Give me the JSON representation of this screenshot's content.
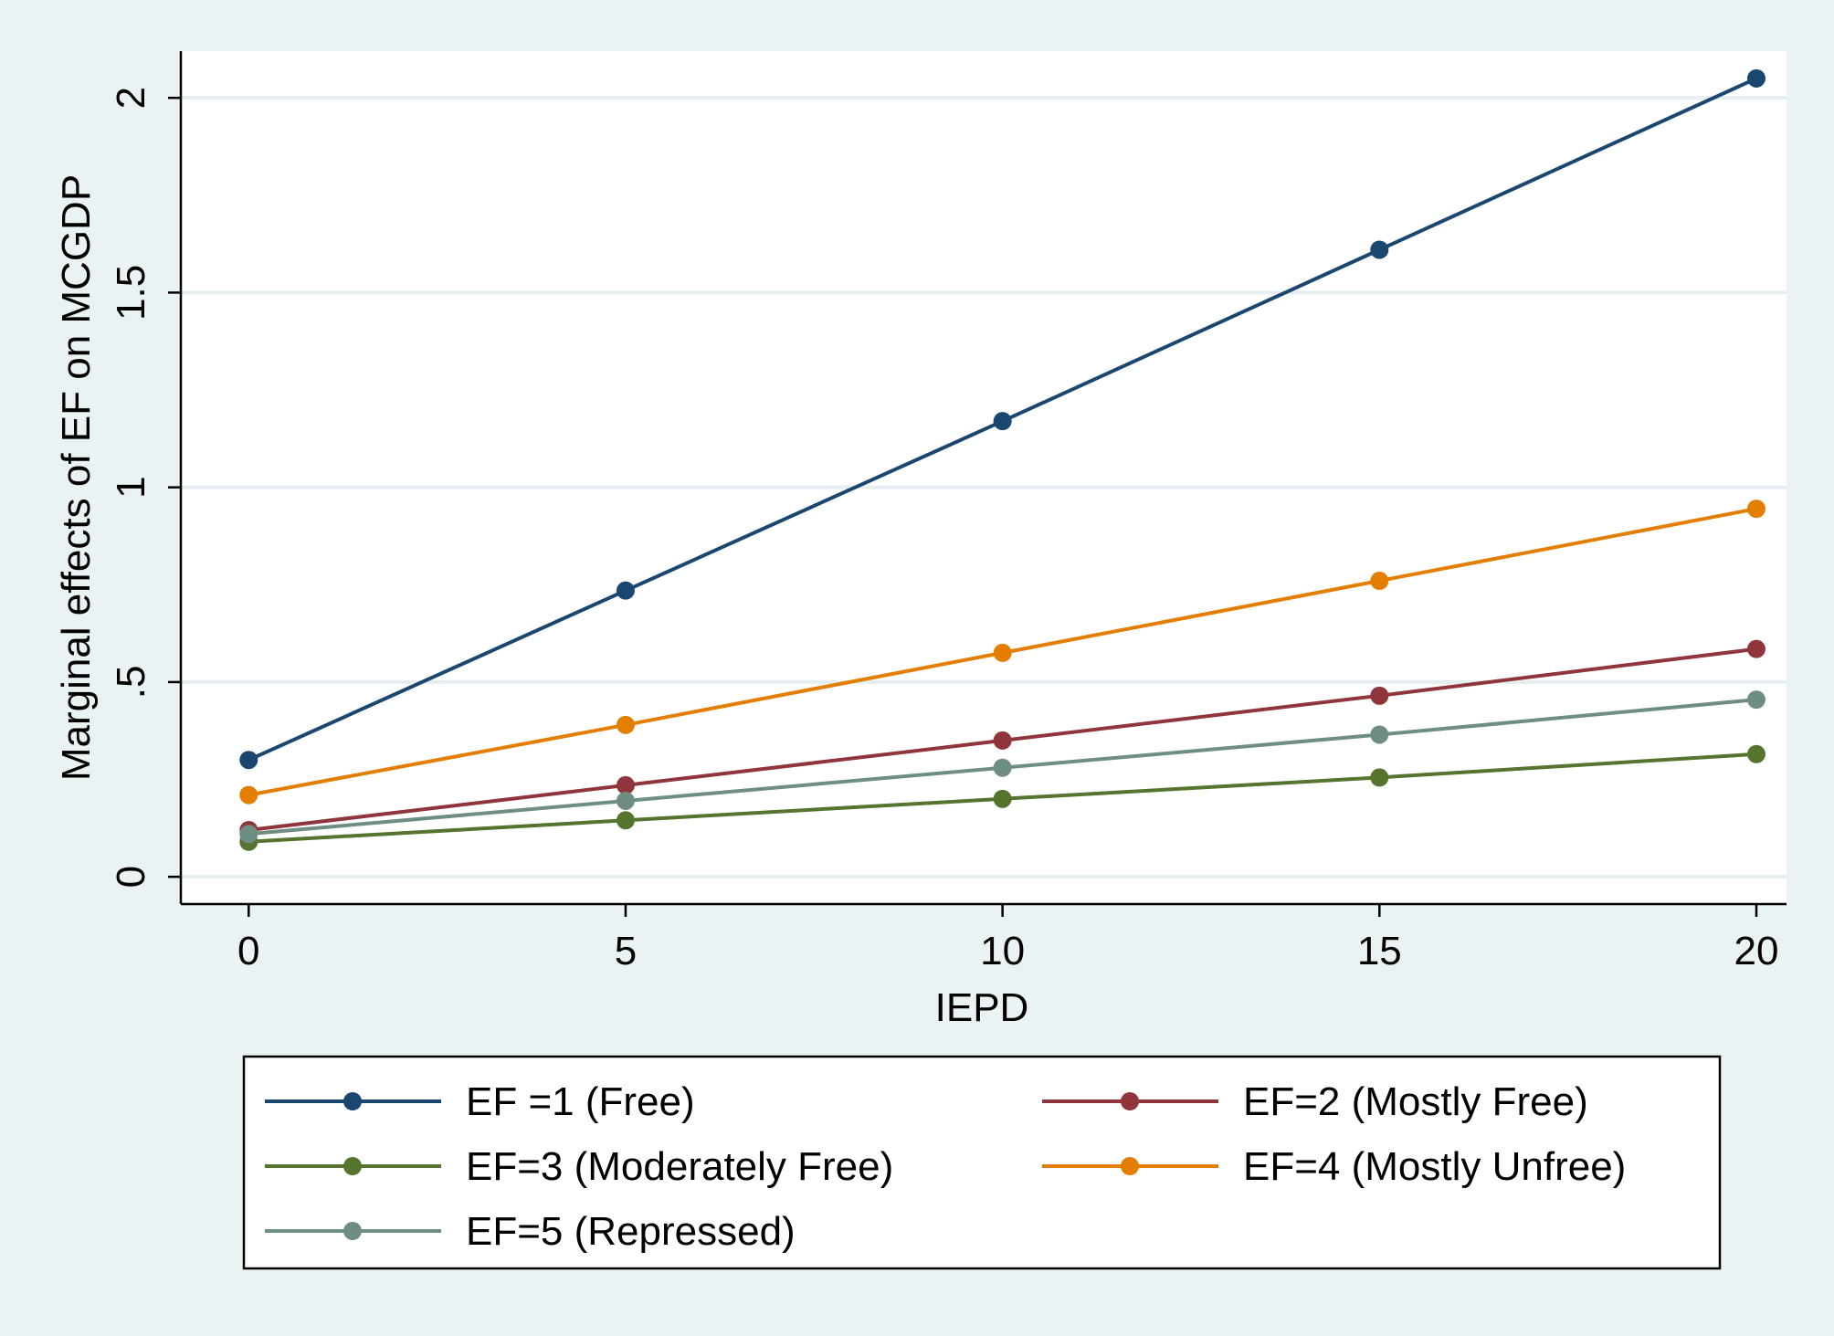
{
  "chart_data": {
    "type": "line",
    "title": "",
    "xlabel": "IEPD",
    "ylabel": "Marginal effects of EF on MCGDP",
    "x": [
      0,
      5,
      10,
      15,
      20
    ],
    "xlim": [
      -0.9,
      20.4
    ],
    "ylim": [
      -0.07,
      2.12
    ],
    "xticks": [
      0,
      5,
      10,
      15,
      20
    ],
    "xtick_labels": [
      "0",
      "5",
      "10",
      "15",
      "20"
    ],
    "yticks": [
      0,
      0.5,
      1,
      1.5,
      2
    ],
    "ytick_labels": [
      "0",
      ".5",
      "1",
      "1.5",
      "2"
    ],
    "grid": true,
    "legend_position": "bottom",
    "series": [
      {
        "name": "EF =1 (Free)",
        "color": "#1a476f",
        "values": [
          0.3,
          0.735,
          1.17,
          1.61,
          2.05
        ]
      },
      {
        "name": "EF=2 (Mostly Free)",
        "color": "#90353b",
        "values": [
          0.12,
          0.235,
          0.35,
          0.465,
          0.585
        ]
      },
      {
        "name": "EF=3 (Moderately Free)",
        "color": "#55752f",
        "values": [
          0.09,
          0.145,
          0.2,
          0.255,
          0.315
        ]
      },
      {
        "name": "EF=4 (Mostly Unfree)",
        "color": "#e37e00",
        "values": [
          0.21,
          0.39,
          0.575,
          0.76,
          0.945
        ]
      },
      {
        "name": "EF=5 (Repressed)",
        "color": "#6e8e84",
        "values": [
          0.11,
          0.195,
          0.28,
          0.365,
          0.455
        ]
      }
    ]
  }
}
